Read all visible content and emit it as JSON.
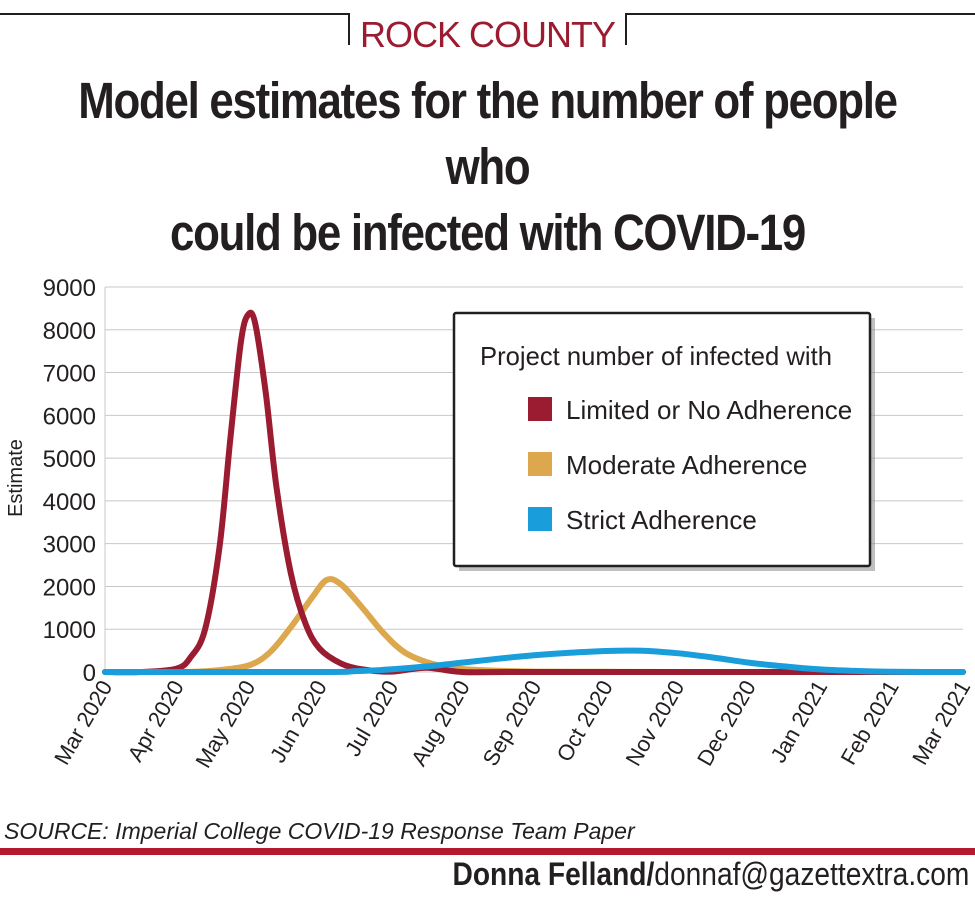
{
  "header": {
    "kicker": "ROCK COUNTY",
    "title_line1": "Model estimates for the number of people who",
    "title_line2": "could be infected with COVID-19"
  },
  "footer": {
    "source": "SOURCE: Imperial College COVID-19 Response Team Paper",
    "credit_name": "Donna Felland/",
    "credit_email": "donnaf@gazettextra.com"
  },
  "chart_data": {
    "type": "line",
    "title": "Model estimates for the number of people who could be infected with COVID-19",
    "xlabel": "",
    "ylabel": "Estimate",
    "ylim": [
      0,
      9000
    ],
    "yticks": [
      0,
      1000,
      2000,
      3000,
      4000,
      5000,
      6000,
      7000,
      8000,
      9000
    ],
    "xticks": [
      "Mar 2020",
      "Apr 2020",
      "May 2020",
      "Jun 2020",
      "Jul 2020",
      "Aug 2020",
      "Sep 2020",
      "Oct 2020",
      "Nov 2020",
      "Dec 2020",
      "Jan 2021",
      "Feb 2021",
      "Mar 2021"
    ],
    "x_unit": "months since Mar 2020",
    "xlim": [
      0,
      12
    ],
    "grid": true,
    "legend": {
      "title": "Project number of infected with",
      "placement": "top-right"
    },
    "series": [
      {
        "name": "Limited or No Adherence",
        "color": "#9b1b30",
        "x": [
          0.0,
          0.5,
          1.0,
          1.2,
          1.4,
          1.6,
          1.75,
          1.9,
          2.0,
          2.1,
          2.25,
          2.4,
          2.6,
          2.8,
          3.0,
          3.3,
          3.6,
          4.0,
          4.5,
          5.0,
          6.0,
          12.0
        ],
        "values": [
          0,
          0,
          80,
          350,
          1000,
          2900,
          5400,
          7700,
          8350,
          8150,
          6500,
          4300,
          2300,
          1150,
          550,
          200,
          60,
          10,
          100,
          0,
          0,
          0
        ]
      },
      {
        "name": "Moderate Adherence",
        "color": "#dca74d",
        "x": [
          0.0,
          1.0,
          1.5,
          2.0,
          2.3,
          2.6,
          2.9,
          3.1,
          3.3,
          3.6,
          3.9,
          4.2,
          4.6,
          5.0,
          5.5,
          6.0,
          7.0,
          8.0,
          12.0
        ],
        "values": [
          0,
          0,
          30,
          150,
          450,
          1050,
          1750,
          2150,
          2050,
          1500,
          900,
          450,
          180,
          70,
          30,
          10,
          5,
          0,
          0
        ]
      },
      {
        "name": "Strict Adherence",
        "color": "#1a9ddb",
        "x": [
          0.0,
          3.0,
          3.5,
          4.0,
          4.5,
          5.0,
          5.5,
          6.0,
          6.5,
          7.0,
          7.3,
          7.6,
          8.0,
          8.5,
          9.0,
          9.5,
          10.0,
          10.5,
          11.0,
          12.0
        ],
        "values": [
          0,
          0,
          20,
          60,
          130,
          220,
          310,
          390,
          450,
          490,
          500,
          490,
          440,
          340,
          220,
          130,
          60,
          25,
          5,
          0
        ]
      }
    ]
  }
}
